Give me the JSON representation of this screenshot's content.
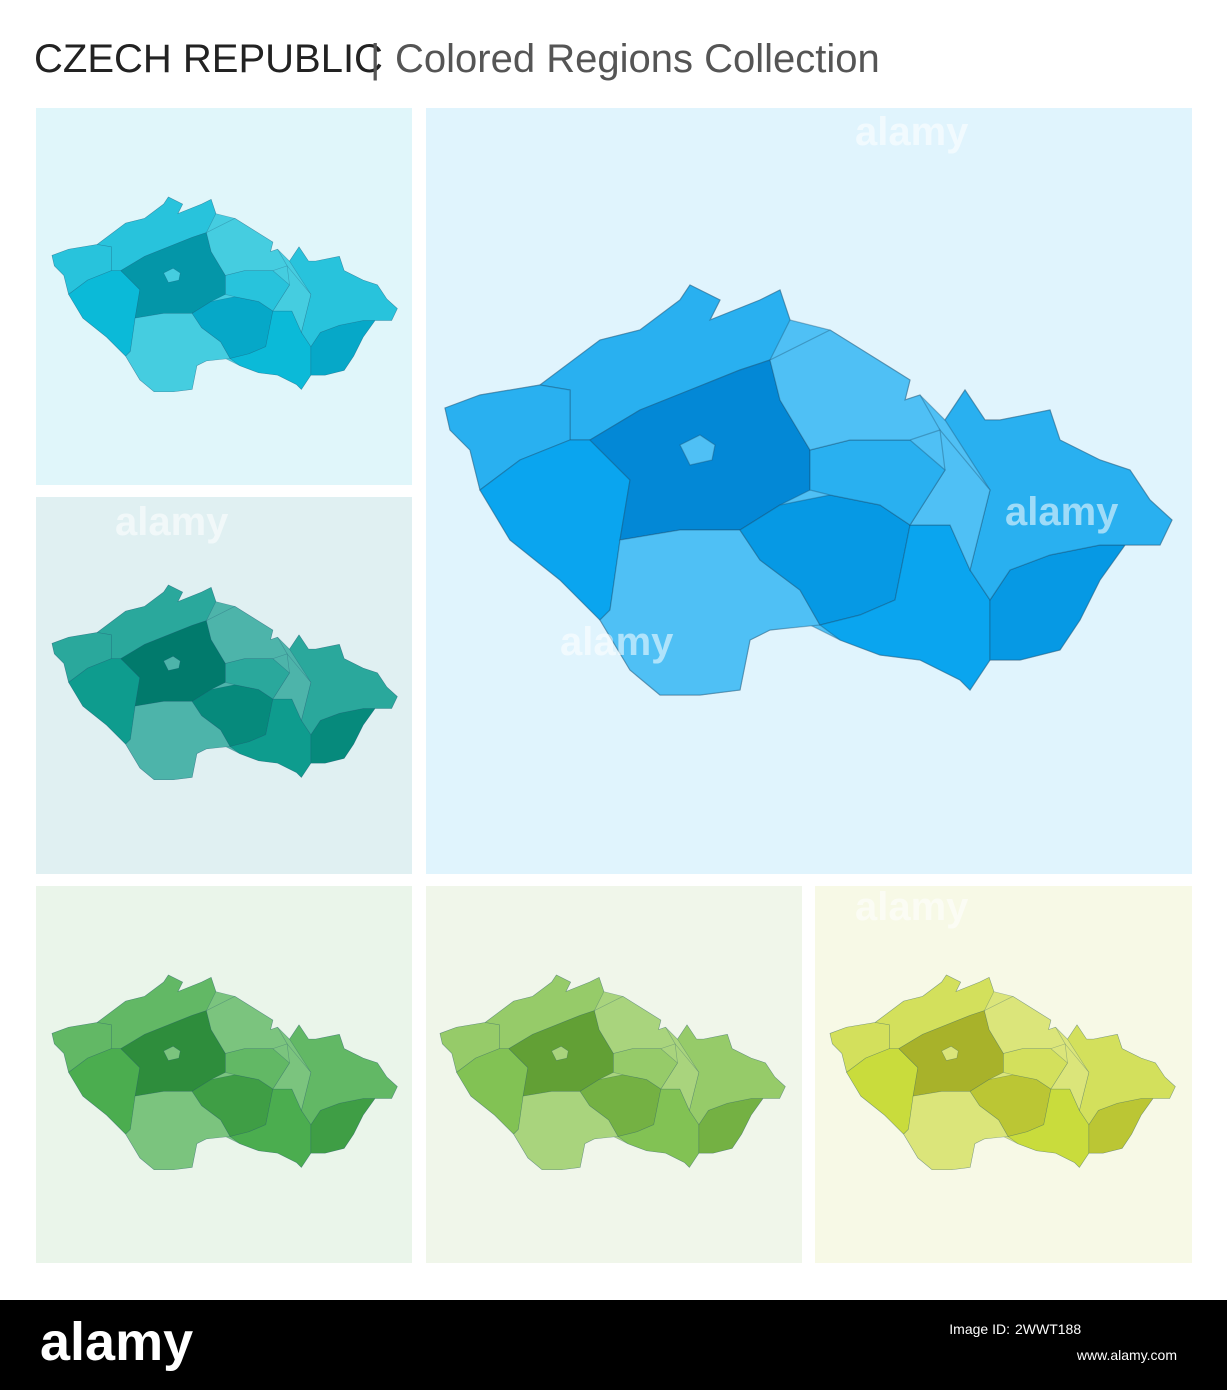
{
  "header": {
    "country": "CZECH REPUBLIC",
    "separator": "|",
    "subtitle": "Colored Regions Collection"
  },
  "watermark": "alamy",
  "footer": {
    "brand": "alamy",
    "image_id_label": "Image ID:",
    "image_id": "2WWT188",
    "url": "www.alamy.com"
  }
}
